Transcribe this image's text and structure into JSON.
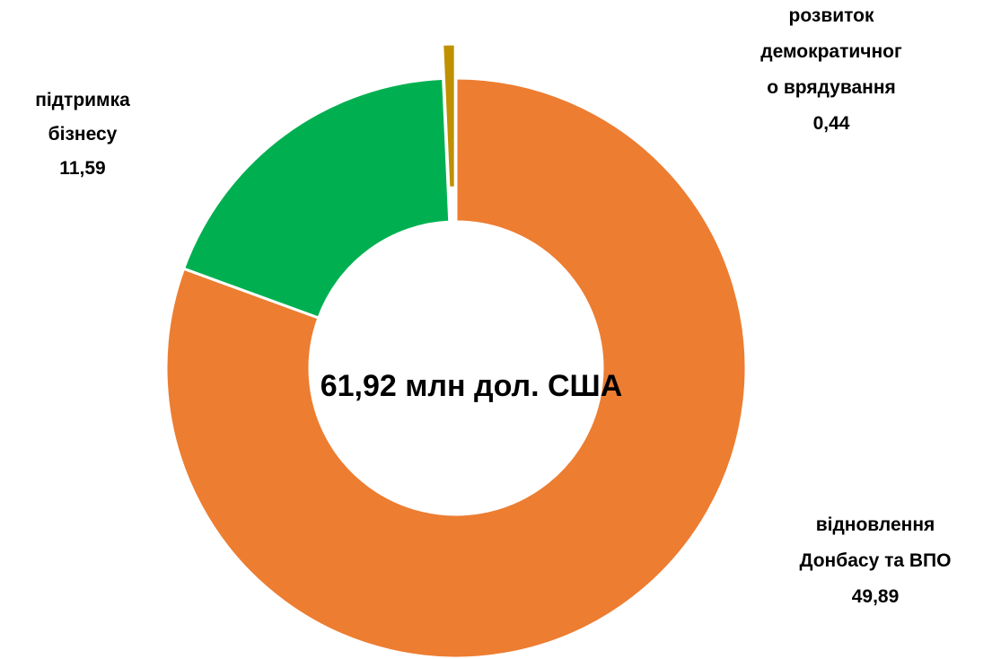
{
  "chart_data": {
    "type": "donut",
    "center_label": "61,92 млн дол. США",
    "categories": [
      [
        "відновлення",
        "Донбасу та ВПО"
      ],
      [
        "підтримка",
        "бізнесу"
      ],
      [
        "розвиток",
        "демократичног",
        "о врядування"
      ]
    ],
    "values": [
      49.89,
      11.59,
      0.44
    ],
    "value_labels": [
      "49,89",
      "11,59",
      "0,44"
    ],
    "colors": [
      "#ED7D31",
      "#00B050",
      "#BF9000"
    ],
    "exploded": [
      false,
      false,
      true
    ]
  }
}
